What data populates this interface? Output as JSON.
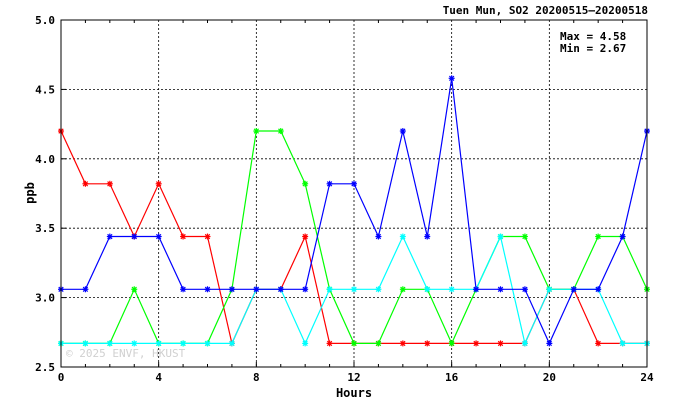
{
  "chart_data": {
    "type": "line",
    "title": "Tuen Mun, SO2 20200515—20200518",
    "xlabel": "Hours",
    "ylabel": "ppb",
    "xlim": [
      0,
      24
    ],
    "ylim": [
      2.5,
      5.0
    ],
    "x_ticks": [
      0,
      4,
      8,
      12,
      16,
      20,
      24
    ],
    "y_ticks": [
      2.5,
      3.0,
      3.5,
      4.0,
      4.5,
      5.0
    ],
    "y_tick_labels": [
      "2.5",
      "3.0",
      "3.5",
      "4.0",
      "4.5",
      "5.0"
    ],
    "grid": true,
    "stats": {
      "max_label": "Max = 4.58",
      "min_label": "Min = 2.67"
    },
    "watermark": "© 2025 ENVF, HKUST",
    "x": [
      0,
      1,
      2,
      3,
      4,
      5,
      6,
      7,
      8,
      9,
      10,
      11,
      12,
      13,
      14,
      15,
      16,
      17,
      18,
      19,
      20,
      21,
      22,
      23,
      24
    ],
    "series": [
      {
        "color": "#ff0000",
        "values": [
          4.2,
          3.82,
          3.82,
          3.44,
          3.82,
          3.44,
          3.44,
          2.67,
          3.06,
          3.06,
          3.44,
          2.67,
          2.67,
          2.67,
          2.67,
          2.67,
          2.67,
          2.67,
          2.67,
          2.67,
          3.06,
          3.06,
          2.67,
          2.67,
          2.67
        ]
      },
      {
        "color": "#00ff00",
        "values": [
          2.67,
          2.67,
          2.67,
          3.06,
          2.67,
          2.67,
          2.67,
          3.06,
          4.2,
          4.2,
          3.82,
          3.06,
          2.67,
          2.67,
          3.06,
          3.06,
          2.67,
          3.06,
          3.44,
          3.44,
          3.06,
          3.06,
          3.44,
          3.44,
          3.06
        ]
      },
      {
        "color": "#00ffff",
        "values": [
          2.67,
          2.67,
          2.67,
          2.67,
          2.67,
          2.67,
          2.67,
          2.67,
          3.06,
          3.06,
          2.67,
          3.06,
          3.06,
          3.06,
          3.44,
          3.06,
          3.06,
          3.06,
          3.44,
          2.67,
          3.06,
          3.06,
          3.06,
          2.67,
          2.67
        ]
      },
      {
        "color": "#0000ff",
        "values": [
          3.06,
          3.06,
          3.44,
          3.44,
          3.44,
          3.06,
          3.06,
          3.06,
          3.06,
          3.06,
          3.06,
          3.82,
          3.82,
          3.44,
          4.2,
          3.44,
          4.58,
          3.06,
          3.06,
          3.06,
          2.67,
          3.06,
          3.06,
          3.44,
          4.2
        ]
      }
    ]
  }
}
